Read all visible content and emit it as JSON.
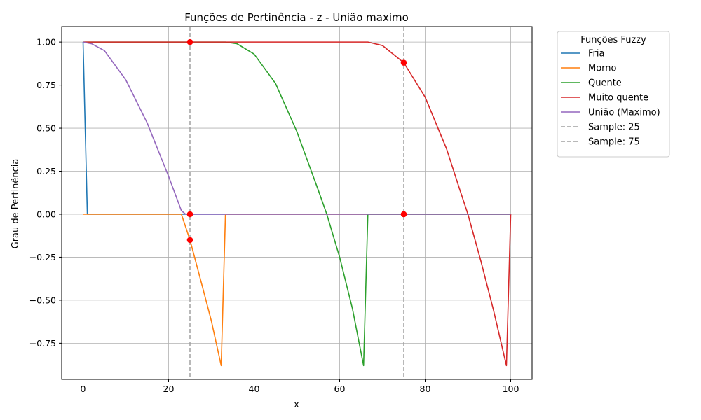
{
  "chart_data": {
    "type": "line",
    "title": "Funções de Pertinência - z - União maximo",
    "xlabel": "x",
    "ylabel": "Grau de Pertinência",
    "xlim": [
      -5,
      105
    ],
    "ylim": [
      -0.96,
      1.09
    ],
    "xticks": [
      0,
      20,
      40,
      60,
      80,
      100
    ],
    "yticks": [
      -0.75,
      -0.5,
      -0.25,
      0.0,
      0.25,
      0.5,
      0.75,
      1.0
    ],
    "xtick_labels": [
      "0",
      "20",
      "40",
      "60",
      "80",
      "100"
    ],
    "ytick_labels": [
      "−0.75",
      "−0.50",
      "−0.25",
      "0.00",
      "0.25",
      "0.50",
      "0.75",
      "1.00"
    ],
    "grid": true,
    "legend": {
      "title": "Funções Fuzzy",
      "placement": "outside-right"
    },
    "series": [
      {
        "name": "Fria",
        "color": "#1f77b4",
        "style": "solid",
        "x": [
          0,
          1,
          1.01,
          100
        ],
        "y": [
          1.0,
          0.0,
          0.0,
          0.0
        ]
      },
      {
        "name": "Morno",
        "color": "#ff7f0e",
        "style": "solid",
        "x": [
          0,
          23,
          25,
          28,
          30,
          32.3,
          33.3,
          33.4,
          100
        ],
        "y": [
          0.0,
          0.0,
          -0.15,
          -0.43,
          -0.62,
          -0.88,
          0.0,
          0.0,
          0.0
        ]
      },
      {
        "name": "Quente",
        "color": "#2ca02c",
        "style": "solid",
        "x": [
          0,
          33.3,
          36,
          40,
          45,
          50,
          55,
          57,
          60,
          63,
          65.6,
          66.6,
          66.7,
          100
        ],
        "y": [
          1.0,
          1.0,
          0.99,
          0.93,
          0.76,
          0.48,
          0.14,
          0.0,
          -0.25,
          -0.55,
          -0.88,
          0.0,
          0.0,
          0.0
        ]
      },
      {
        "name": "Muito quente",
        "color": "#d62728",
        "style": "solid",
        "x": [
          0,
          66.6,
          70,
          75,
          80,
          85,
          88,
          90,
          93,
          96,
          99,
          100
        ],
        "y": [
          1.0,
          1.0,
          0.98,
          0.88,
          0.68,
          0.38,
          0.15,
          0.0,
          -0.27,
          -0.56,
          -0.88,
          0.0
        ]
      },
      {
        "name": "União (Maximo)",
        "color": "#9467bd",
        "style": "solid",
        "x": [
          0,
          2,
          5,
          10,
          15,
          20,
          23,
          24,
          100
        ],
        "y": [
          1.0,
          0.99,
          0.95,
          0.78,
          0.53,
          0.22,
          0.02,
          0.0,
          0.0
        ]
      }
    ],
    "vlines": [
      {
        "name": "Sample: 25",
        "x": 25,
        "color": "#a0a0a0",
        "style": "dashed"
      },
      {
        "name": "Sample: 75",
        "x": 75,
        "color": "#a0a0a0",
        "style": "dashed"
      }
    ],
    "points": {
      "color": "#ff0000",
      "x": [
        25,
        25,
        25,
        75,
        75
      ],
      "y": [
        1.0,
        0.0,
        -0.15,
        0.88,
        0.0
      ]
    }
  }
}
